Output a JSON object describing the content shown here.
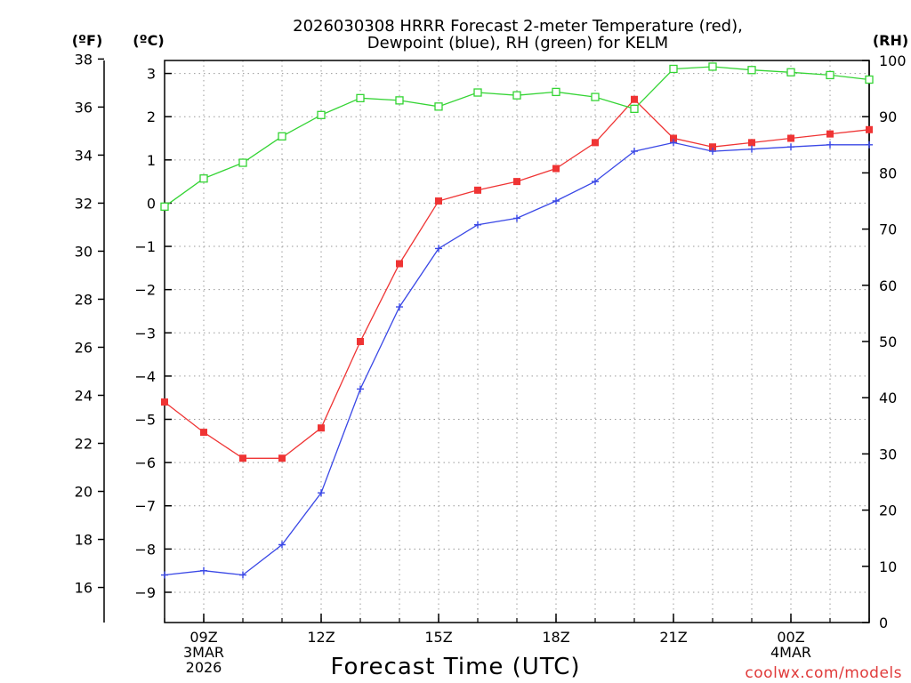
{
  "chart_data": {
    "type": "line",
    "title_line1": "2026030308 HRRR Forecast 2-meter Temperature (red),",
    "title_line2": "Dewpoint (blue), RH (green) for KELM",
    "xlabel": "Forecast Time (UTC)",
    "credit": "coolwx.com/models",
    "units": {
      "left_outer": "(ºF)",
      "left_inner": "(ºC)",
      "right": "(RH)"
    },
    "x_hours": [
      8,
      9,
      10,
      11,
      12,
      13,
      14,
      15,
      16,
      17,
      18,
      19,
      20,
      21,
      22,
      23,
      24,
      25,
      26
    ],
    "xlim": [
      8,
      26
    ],
    "x_ticks": [
      {
        "hour": 9,
        "lines": [
          "09Z",
          "3MAR",
          "2026"
        ]
      },
      {
        "hour": 12,
        "lines": [
          "12Z"
        ]
      },
      {
        "hour": 15,
        "lines": [
          "15Z"
        ]
      },
      {
        "hour": 18,
        "lines": [
          "18Z"
        ]
      },
      {
        "hour": 21,
        "lines": [
          "21Z"
        ]
      },
      {
        "hour": 24,
        "lines": [
          "00Z",
          "4MAR"
        ]
      }
    ],
    "celsius_axis": {
      "ylim": [
        -9.7,
        3.3
      ],
      "ticks": [
        3,
        2,
        1,
        0,
        -1,
        -2,
        -3,
        -4,
        -5,
        -6,
        -7,
        -8,
        -9
      ],
      "labels": [
        "3",
        "2",
        "1",
        "0",
        "−1",
        "−2",
        "−3",
        "−4",
        "−5",
        "−6",
        "−7",
        "−8",
        "−9"
      ]
    },
    "fahrenheit_axis": {
      "ticks": [
        38,
        36,
        34,
        32,
        30,
        28,
        26,
        24,
        22,
        20,
        18,
        16
      ]
    },
    "rh_axis": {
      "ylim": [
        0,
        100
      ],
      "ticks": [
        100,
        90,
        80,
        70,
        60,
        50,
        40,
        30,
        20,
        10,
        0
      ]
    },
    "series": [
      {
        "name": "Temperature",
        "axis": "celsius",
        "color": "#ef3434",
        "marker": "filled-square",
        "values": [
          -4.6,
          -5.3,
          -5.9,
          -5.9,
          -5.2,
          -3.2,
          -1.4,
          0.05,
          0.3,
          0.5,
          0.8,
          1.4,
          2.4,
          1.5,
          1.3,
          1.4,
          1.5,
          1.6,
          1.7
        ]
      },
      {
        "name": "Dewpoint",
        "axis": "celsius",
        "color": "#3a48e6",
        "marker": "plus",
        "values": [
          -8.6,
          -8.5,
          -8.6,
          -7.9,
          -6.7,
          -4.3,
          -2.4,
          -1.05,
          -0.5,
          -0.35,
          0.05,
          0.5,
          1.2,
          1.4,
          1.2,
          1.25,
          1.3,
          1.35,
          1.35
        ]
      },
      {
        "name": "RH",
        "axis": "rh",
        "color": "#34d434",
        "marker": "open-square",
        "values": [
          74,
          79,
          81.8,
          86.5,
          90.3,
          93.3,
          92.9,
          91.8,
          94.3,
          93.8,
          94.4,
          93.5,
          91.4,
          98.5,
          98.9,
          98.3,
          97.9,
          97.4,
          96.6
        ]
      }
    ]
  }
}
